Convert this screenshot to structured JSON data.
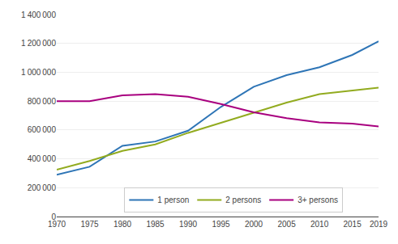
{
  "chart_data": {
    "type": "line",
    "x": [
      1970,
      1975,
      1980,
      1985,
      1990,
      1995,
      2000,
      2005,
      2010,
      2015,
      2019
    ],
    "series": [
      {
        "name": "1 person",
        "color": "#2E75B6",
        "values": [
          290000,
          345000,
          490000,
          520000,
          595000,
          760000,
          900000,
          980000,
          1035000,
          1120000,
          1215000
        ]
      },
      {
        "name": "2 persons",
        "color": "#92AB1F",
        "values": [
          325000,
          385000,
          455000,
          500000,
          580000,
          650000,
          720000,
          790000,
          848000,
          875000,
          893000
        ]
      },
      {
        "name": "3+ persons",
        "color": "#A8007F",
        "values": [
          800000,
          800000,
          840000,
          848000,
          830000,
          780000,
          722000,
          682000,
          653000,
          644000,
          624000
        ]
      }
    ],
    "xlim": [
      1970,
      2019
    ],
    "xticks": [
      1970,
      1975,
      1980,
      1985,
      1990,
      1995,
      2000,
      2005,
      2010,
      2015,
      2019
    ],
    "ylim": [
      0,
      1400000
    ],
    "yticks": [
      0,
      {
        "value": 200000,
        "label": "200 000"
      },
      {
        "value": 400000,
        "label": "400 000"
      },
      {
        "value": 600000,
        "label": "600 000"
      },
      {
        "value": 800000,
        "label": "800 000"
      },
      {
        "value": 1000000,
        "label": "1 000 000"
      },
      {
        "value": 1200000,
        "label": "1 200 000"
      },
      {
        "value": 1400000,
        "label": "1 400 000"
      }
    ],
    "grid": true,
    "legend": "bottom"
  }
}
